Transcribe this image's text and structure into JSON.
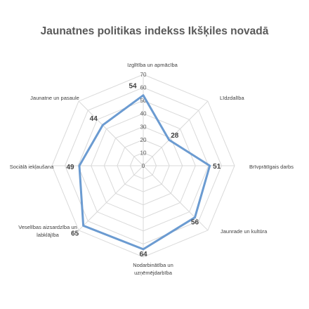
{
  "chart_data": {
    "type": "radar",
    "title": "Jaunatnes politikas indekss Ikšķiles novadā",
    "categories": [
      "Izglītība un apmācība",
      "Līdzdalība",
      "Brīvprātīgais darbs",
      "Jaunrade un kultūra",
      "Nodarbinātība un uzņēmējdarbība",
      "Veselības aizsardzība un labklājība",
      "Sociālā iekļaušana",
      "Jaunatne un pasaule"
    ],
    "values": [
      54,
      28,
      51,
      56,
      64,
      65,
      49,
      44
    ],
    "value_labels": [
      "54",
      "28",
      "51",
      "56",
      "64",
      "65",
      "49",
      "44"
    ],
    "rlim": [
      0,
      70
    ],
    "ticks": [
      "0",
      "10",
      "20",
      "30",
      "40",
      "50",
      "60",
      "70"
    ],
    "series_color": "#6b9bd1",
    "grid_color": "#d9d9d9",
    "grid": true,
    "legend": false
  }
}
